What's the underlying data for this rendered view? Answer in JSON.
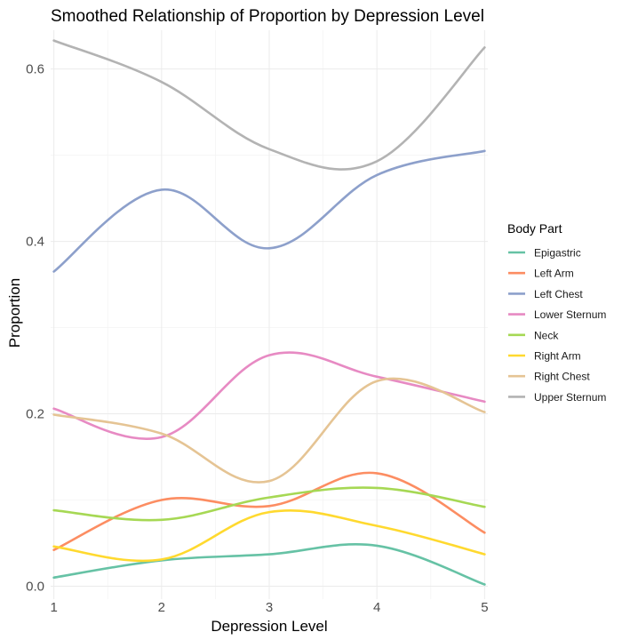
{
  "chart_data": {
    "type": "line",
    "title": "Smoothed Relationship of Proportion by Depression Level",
    "xlabel": "Depression Level",
    "ylabel": "Proportion",
    "x": [
      1,
      2,
      3,
      4,
      5
    ],
    "xlim": [
      0.97,
      5.03
    ],
    "ylim": [
      -0.015,
      0.645
    ],
    "x_ticks": [
      1,
      2,
      3,
      4,
      5
    ],
    "y_ticks": [
      0.0,
      0.2,
      0.4,
      0.6
    ],
    "y_tick_labels": [
      "0.0",
      "0.2",
      "0.4",
      "0.6"
    ],
    "grid": true,
    "legend_title": "Body Part",
    "legend_position": "right",
    "series": [
      {
        "name": "Epigastric",
        "color": "#66c2a5",
        "values": [
          0.01,
          0.03,
          0.037,
          0.047,
          0.002
        ]
      },
      {
        "name": "Left Arm",
        "color": "#fc8d62",
        "values": [
          0.042,
          0.1,
          0.093,
          0.131,
          0.062
        ]
      },
      {
        "name": "Left Chest",
        "color": "#8da0cb",
        "values": [
          0.365,
          0.46,
          0.392,
          0.477,
          0.505
        ]
      },
      {
        "name": "Lower Sternum",
        "color": "#e78ac3",
        "values": [
          0.206,
          0.173,
          0.268,
          0.243,
          0.214
        ]
      },
      {
        "name": "Neck",
        "color": "#a6d854",
        "values": [
          0.088,
          0.077,
          0.103,
          0.114,
          0.092
        ]
      },
      {
        "name": "Right Arm",
        "color": "#ffd92f",
        "values": [
          0.046,
          0.031,
          0.086,
          0.07,
          0.037
        ]
      },
      {
        "name": "Right Chest",
        "color": "#e5c494",
        "values": [
          0.199,
          0.177,
          0.122,
          0.238,
          0.202
        ]
      },
      {
        "name": "Upper Sternum",
        "color": "#b3b3b3",
        "values": [
          0.633,
          0.585,
          0.507,
          0.493,
          0.625
        ]
      }
    ]
  }
}
